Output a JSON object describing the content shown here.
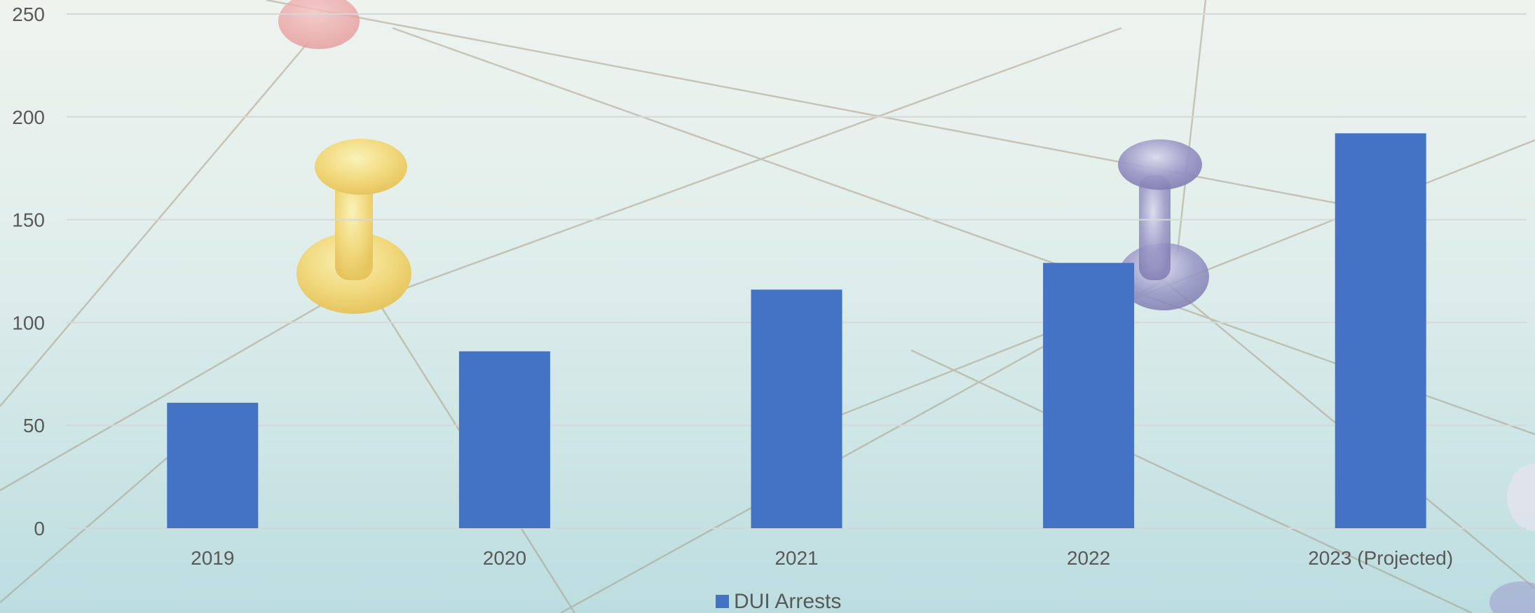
{
  "colors": {
    "bar": "#4472C4",
    "gridline": "#d4d8d8",
    "tick_text": "#595959"
  },
  "chart_data": {
    "type": "bar",
    "title": "",
    "xlabel": "",
    "ylabel": "",
    "categories": [
      "2019",
      "2020",
      "2021",
      "2022",
      "2023 (Projected)"
    ],
    "series": [
      {
        "name": "DUI Arrests",
        "values": [
          61,
          86,
          116,
          129,
          192
        ]
      }
    ],
    "ylim": [
      0,
      250
    ],
    "yticks": [
      0,
      50,
      100,
      150,
      200,
      250
    ],
    "grid": true,
    "legend": "bottom-center"
  }
}
